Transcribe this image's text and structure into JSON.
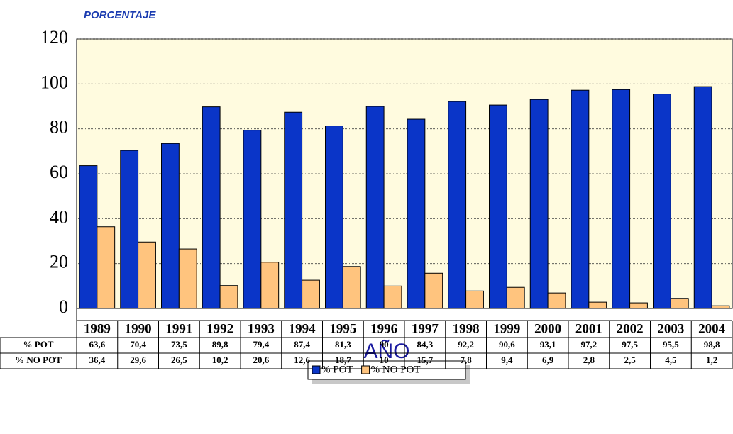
{
  "chart_data": {
    "type": "bar",
    "y_label": "PORCENTAJE",
    "x_label": "AÑO",
    "categories": [
      "1989",
      "1990",
      "1991",
      "1992",
      "1993",
      "1994",
      "1995",
      "1996",
      "1997",
      "1998",
      "1999",
      "2000",
      "2001",
      "2002",
      "2003",
      "2004"
    ],
    "series": [
      {
        "name": "% POT",
        "color": "#0a35c8",
        "values": [
          63.6,
          70.4,
          73.5,
          89.8,
          79.4,
          87.4,
          81.3,
          90,
          84.3,
          92.2,
          90.6,
          93.1,
          97.2,
          97.5,
          95.5,
          98.8
        ],
        "value_labels": [
          "63,6",
          "70,4",
          "73,5",
          "89,8",
          "79,4",
          "87,4",
          "81,3",
          "90",
          "84,3",
          "92,2",
          "90,6",
          "93,1",
          "97,2",
          "97,5",
          "95,5",
          "98,8"
        ]
      },
      {
        "name": "% NO POT",
        "color": "#ffc47e",
        "values": [
          36.4,
          29.6,
          26.5,
          10.2,
          20.6,
          12.6,
          18.7,
          10,
          15.7,
          7.8,
          9.4,
          6.9,
          2.8,
          2.5,
          4.5,
          1.2
        ],
        "value_labels": [
          "36,4",
          "29,6",
          "26,5",
          "10,2",
          "20,6",
          "12,6",
          "18,7",
          "10",
          "15,7",
          "7,8",
          "9,4",
          "6,9",
          "2,8",
          "2,5",
          "4,5",
          "1,2"
        ]
      }
    ],
    "ylim": [
      0,
      120
    ],
    "yticks": [
      0,
      20,
      40,
      60,
      80,
      100,
      120
    ],
    "grid": true,
    "legend": "bottom"
  }
}
